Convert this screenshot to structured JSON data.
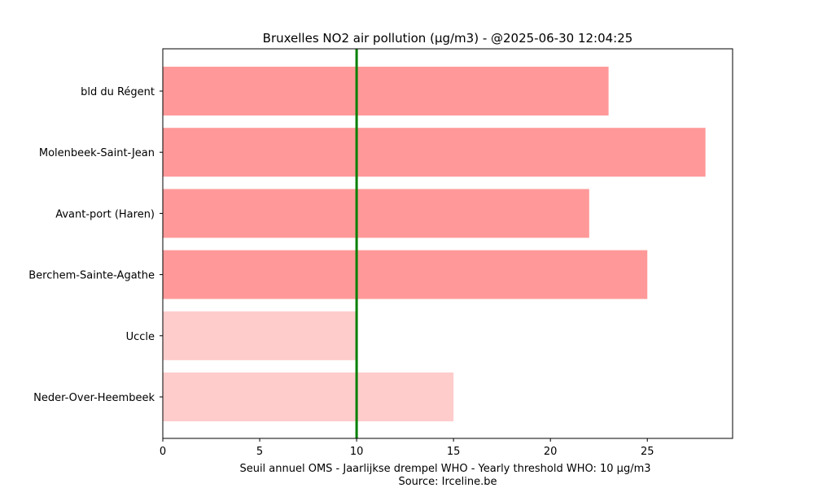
{
  "chart_data": {
    "type": "bar",
    "orientation": "horizontal",
    "title": "Bruxelles NO2 air pollution (µg/m3) - @2025-06-30 12:04:25",
    "xlabel": "Seuil annuel OMS - Jaarlijkse drempel WHO - Yearly threshold WHO: 10 µg/m3",
    "xlabel2": "Source: Irceline.be",
    "categories": [
      "bld du Régent",
      "Molenbeek-Saint-Jean",
      "Avant-port (Haren)",
      "Berchem-Sainte-Agathe",
      "Uccle",
      "Neder-Over-Heembeek"
    ],
    "values": [
      23,
      28,
      22,
      25,
      10,
      15
    ],
    "bar_colors": [
      "#ff9999",
      "#ff9999",
      "#ff9999",
      "#ff9999",
      "#ffcccc",
      "#ffcccc"
    ],
    "xlim": [
      0,
      29.4
    ],
    "xticks": [
      0,
      5,
      10,
      15,
      20,
      25
    ],
    "threshold": {
      "value": 10,
      "color": "#008000"
    },
    "grid": false,
    "legend": "none"
  }
}
